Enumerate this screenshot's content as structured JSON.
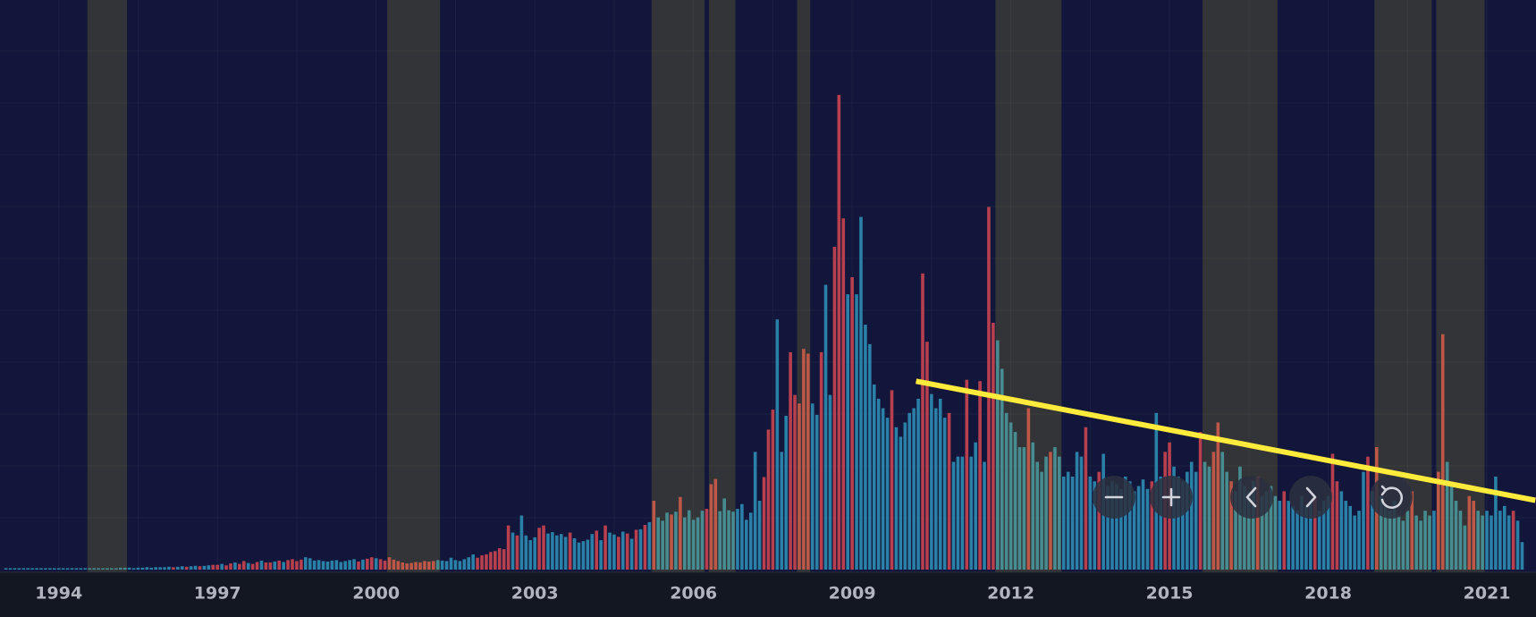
{
  "chart_data": {
    "type": "bar",
    "categories": [
      null,
      null,
      null,
      null,
      null,
      null,
      null,
      null,
      null,
      null,
      null,
      null,
      "1994",
      null,
      null,
      null,
      null,
      null,
      null,
      null,
      null,
      null,
      null,
      null,
      null,
      null,
      null,
      null,
      null,
      null,
      null,
      null,
      null,
      null,
      null,
      null,
      null,
      null,
      null,
      null,
      null,
      null,
      null,
      null,
      null,
      null,
      null,
      null,
      "1997",
      null,
      null,
      null,
      null,
      null,
      null,
      null,
      null,
      null,
      null,
      null,
      null,
      null,
      null,
      null,
      null,
      null,
      null,
      null,
      null,
      null,
      null,
      null,
      null,
      null,
      null,
      null,
      null,
      null,
      null,
      null,
      null,
      null,
      null,
      null,
      "2000",
      null,
      null,
      null,
      null,
      null,
      null,
      null,
      null,
      null,
      null,
      null,
      null,
      null,
      null,
      null,
      null,
      null,
      null,
      null,
      null,
      null,
      null,
      null,
      null,
      null,
      null,
      null,
      null,
      null,
      null,
      null,
      null,
      null,
      null,
      null,
      "2003",
      null,
      null,
      null,
      null,
      null,
      null,
      null,
      null,
      null,
      null,
      null,
      null,
      null,
      null,
      null,
      null,
      null,
      null,
      null,
      null,
      null,
      null,
      null,
      null,
      null,
      null,
      null,
      null,
      null,
      null,
      null,
      null,
      null,
      null,
      null,
      "2006",
      null,
      null,
      null,
      null,
      null,
      null,
      null,
      null,
      null,
      null,
      null,
      null,
      null,
      null,
      null,
      null,
      null,
      null,
      null,
      null,
      null,
      null,
      null,
      null,
      null,
      null,
      null,
      null,
      null,
      null,
      null,
      null,
      null,
      null,
      null,
      "2009",
      null,
      null,
      null,
      null,
      null,
      null,
      null,
      null,
      null,
      null,
      null,
      null,
      null,
      null,
      null,
      null,
      null,
      null,
      null,
      null,
      null,
      null,
      null,
      null,
      null,
      null,
      null,
      null,
      null,
      null,
      null,
      null,
      null,
      null,
      null,
      "2012",
      null,
      null,
      null,
      null,
      null,
      null,
      null,
      null,
      null,
      null,
      null,
      null,
      null,
      null,
      null,
      null,
      null,
      null,
      null,
      null,
      null,
      null,
      null,
      null,
      null,
      null,
      null,
      null,
      null,
      null,
      null,
      null,
      null,
      null,
      null,
      "2015",
      null,
      null,
      null,
      null,
      null,
      null,
      null,
      null,
      null,
      null,
      null,
      null,
      null,
      null,
      null,
      null,
      null,
      null,
      null,
      null,
      null,
      null,
      null,
      null,
      null,
      null,
      null,
      null,
      null,
      null,
      null,
      null,
      null,
      null,
      null,
      "2018",
      null,
      null,
      null,
      null,
      null,
      null,
      null,
      null,
      null,
      null,
      null,
      null,
      null,
      null,
      null,
      null,
      null,
      null,
      null,
      null,
      null,
      null,
      null,
      null,
      null,
      null,
      null,
      null,
      null,
      null,
      null,
      null,
      null,
      null,
      null,
      "2021",
      null,
      null,
      null,
      null,
      null,
      null,
      null,
      null
    ],
    "series": [
      {
        "color": "#2a80a6",
        "values": [
          0.3,
          0.3,
          0.3,
          0.3,
          0.3,
          0.3,
          0.3,
          0.3,
          0.3,
          0.3,
          0.3,
          0.3,
          0.3,
          0.3,
          0.3,
          0.3,
          0.3,
          0.3,
          0.3,
          0.3,
          0.3,
          0.3,
          0.3,
          0.3,
          0.3,
          0.3,
          0.4,
          0.4,
          0.4,
          0.3,
          0.4,
          0.4,
          0.5,
          0.4,
          0.5,
          0.5,
          0.5,
          0.6,
          null,
          0.6,
          0.7,
          null,
          0.7,
          0.8,
          null,
          0.8,
          0.9,
          null,
          null,
          1.2,
          null,
          null,
          1.5,
          null,
          null,
          1.4,
          null,
          null,
          1.9,
          null,
          null,
          1.7,
          null,
          1.6,
          null,
          null,
          null,
          null,
          2.6,
          2.4,
          1.9,
          2.0,
          1.8,
          1.7,
          1.9,
          2.0,
          1.6,
          1.8,
          2.0,
          2.2,
          null,
          2.1,
          null,
          null,
          2.4,
          null,
          null,
          null,
          null,
          null,
          null,
          null,
          null,
          null,
          null,
          null,
          null,
          null,
          2.0,
          1.9,
          1.8,
          2.5,
          2.0,
          1.8,
          2.2,
          2.6,
          3.2,
          null,
          null,
          null,
          null,
          null,
          null,
          null,
          null,
          7.8,
          null,
          11.4,
          7.2,
          6.2,
          6.8,
          null,
          null,
          7.6,
          7.9,
          7.2,
          7.5,
          6.9,
          null,
          6.6,
          5.7,
          6.0,
          6.3,
          7.5,
          null,
          6.2,
          null,
          7.8,
          7.4,
          null,
          8.0,
          null,
          6.5,
          null,
          8.5,
          null,
          10.0,
          null,
          11.0,
          10.3,
          12.0,
          null,
          12.2,
          null,
          11.0,
          12.5,
          10.5,
          11.0,
          12.4,
          null,
          null,
          null,
          12.3,
          15.0,
          12.5,
          12.2,
          12.8,
          13.8,
          10.5,
          12.0,
          24.8,
          14.5,
          null,
          null,
          null,
          52.7,
          24.8,
          32.4,
          null,
          null,
          null,
          null,
          null,
          35,
          32.6,
          null,
          60,
          36.8,
          null,
          null,
          null,
          58,
          null,
          58,
          74.3,
          51.6,
          47.5,
          39,
          36,
          34,
          32,
          null,
          30,
          28,
          31,
          33,
          34,
          36,
          null,
          null,
          37,
          34,
          36,
          32,
          null,
          22.7,
          23.8,
          23.8,
          null,
          23.8,
          26.8,
          null,
          22.7,
          null,
          null,
          48.3,
          42.3,
          33,
          31,
          29,
          25.8,
          25.8,
          null,
          26.8,
          22.7,
          20.6,
          23.8,
          null,
          25.8,
          23.8,
          19.6,
          20.6,
          19.6,
          24.8,
          23.8,
          null,
          19.6,
          18.6,
          null,
          24.4,
          17.6,
          18.6,
          18,
          17,
          19.6,
          18.6,
          16.5,
          17.6,
          19,
          17,
          null,
          33,
          19.6,
          null,
          null,
          21.7,
          19.6,
          18.6,
          20.6,
          22.7,
          20.6,
          null,
          22.7,
          21.7,
          null,
          null,
          24.8,
          20.6,
          null,
          16.5,
          21.7,
          17.6,
          16.5,
          18.6,
          null,
          15.5,
          16.5,
          17.6,
          15.5,
          14.5,
          null,
          14.5,
          13.4,
          12.4,
          15.5,
          13.4,
          14.5,
          null,
          12.4,
          14.5,
          15.5,
          null,
          null,
          16.5,
          14.5,
          13.4,
          11.4,
          12.4,
          20.6,
          null,
          16.5,
          null,
          15.5,
          13.4,
          12.4,
          14.5,
          11.4,
          10.3,
          12.4,
          null,
          11.4,
          10.3,
          12.4,
          11.4,
          12.4,
          null,
          null,
          22.7,
          17.6,
          14.5,
          12.4,
          9.3,
          null,
          null,
          12.4,
          11.4,
          12.4,
          11.4,
          19.6,
          12.4,
          13.4,
          11.4,
          null,
          10.3,
          5.8
        ]
      },
      {
        "color": "#b8404e",
        "values": [
          null,
          null,
          null,
          null,
          null,
          null,
          null,
          null,
          null,
          null,
          null,
          null,
          null,
          null,
          null,
          null,
          null,
          null,
          null,
          null,
          null,
          null,
          null,
          null,
          null,
          null,
          null,
          null,
          null,
          null,
          null,
          null,
          null,
          null,
          null,
          null,
          null,
          null,
          0.5,
          null,
          null,
          0.6,
          null,
          null,
          0.7,
          null,
          null,
          1.0,
          1.0,
          null,
          0.9,
          1.3,
          null,
          1.2,
          1.8,
          null,
          1.2,
          1.6,
          null,
          1.5,
          1.5,
          null,
          1.9,
          null,
          2.0,
          2.2,
          1.8,
          2.1,
          null,
          null,
          null,
          null,
          null,
          null,
          null,
          null,
          null,
          null,
          null,
          null,
          1.7,
          null,
          2.3,
          2.6,
          null,
          2.2,
          1.9,
          2.6,
          2.1,
          1.8,
          1.5,
          1.3,
          1.4,
          1.6,
          1.5,
          1.8,
          1.7,
          1.8,
          null,
          null,
          null,
          null,
          null,
          null,
          null,
          null,
          null,
          2.5,
          3.0,
          3.2,
          3.7,
          3.9,
          4.5,
          4.3,
          9.3,
          null,
          7.2,
          null,
          null,
          null,
          null,
          8.8,
          9.3,
          null,
          null,
          null,
          null,
          null,
          7.8,
          null,
          null,
          null,
          null,
          null,
          8.2,
          null,
          9.3,
          null,
          null,
          6.9,
          null,
          7.6,
          null,
          8.4,
          null,
          9.4,
          null,
          14.5,
          null,
          null,
          null,
          11.6,
          null,
          15.3,
          null,
          null,
          null,
          null,
          null,
          12.8,
          18.0,
          19.1,
          null,
          null,
          null,
          null,
          null,
          null,
          null,
          null,
          null,
          null,
          19.5,
          29.5,
          33.7,
          null,
          null,
          null,
          45.8,
          36.8,
          35,
          46.5,
          45.5,
          null,
          null,
          45.8,
          null,
          null,
          68,
          100,
          74,
          null,
          61.6,
          null,
          null,
          null,
          null,
          null,
          null,
          null,
          null,
          37.8,
          null,
          null,
          null,
          null,
          null,
          null,
          62.4,
          48,
          null,
          null,
          null,
          null,
          33,
          null,
          null,
          null,
          40,
          null,
          null,
          39.7,
          null,
          76.4,
          52,
          null,
          null,
          null,
          null,
          null,
          null,
          null,
          34,
          null,
          null,
          null,
          null,
          24.8,
          null,
          null,
          null,
          null,
          null,
          null,
          null,
          30,
          null,
          null,
          20.6,
          null,
          null,
          null,
          null,
          null,
          null,
          null,
          null,
          null,
          null,
          null,
          18.6,
          null,
          null,
          24.8,
          26.8,
          null,
          null,
          null,
          null,
          null,
          null,
          29,
          null,
          null,
          24.8,
          31,
          null,
          null,
          18.6,
          null,
          null,
          null,
          null,
          null,
          19.6,
          null,
          null,
          null,
          null,
          null,
          16.5,
          null,
          null,
          null,
          null,
          null,
          null,
          15.5,
          null,
          null,
          null,
          24.4,
          18.6,
          null,
          null,
          null,
          null,
          null,
          null,
          23.8,
          null,
          25.8,
          null,
          null,
          null,
          null,
          null,
          null,
          null,
          16.5,
          null,
          null,
          null,
          null,
          null,
          20.6,
          49.6,
          null,
          null,
          null,
          null,
          null,
          15.5,
          14.5,
          null,
          null,
          null,
          null,
          null,
          null,
          null,
          null,
          12.4,
          null,
          null
        ]
      }
    ],
    "ylim": [
      0,
      120
    ],
    "highlight_ranges": [
      [
        19,
        27
      ],
      [
        87,
        98
      ],
      [
        147,
        158
      ],
      [
        160,
        165
      ],
      [
        180,
        182
      ],
      [
        225,
        239
      ],
      [
        272,
        288
      ],
      [
        311,
        323
      ],
      [
        325,
        335
      ]
    ],
    "highlight_color": "rgba(215,200,40,0.17)",
    "trend_line": [
      [
        206.5,
        39.7
      ],
      [
        347,
        14.6
      ]
    ],
    "trend_color": "#ffeb3b",
    "grid": true
  }
}
